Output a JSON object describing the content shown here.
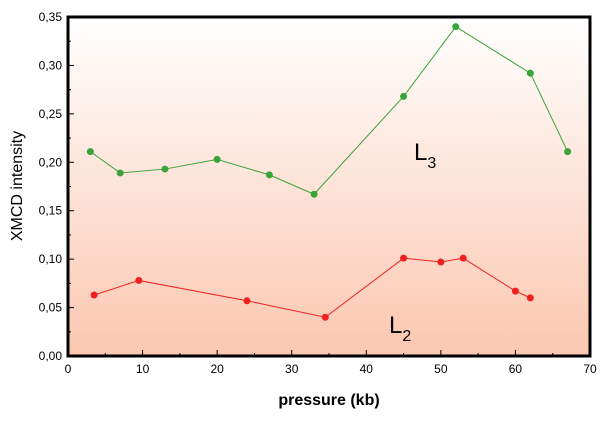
{
  "chart_data": {
    "type": "line",
    "title": "",
    "xlabel": "pressure (kb)",
    "ylabel": "XMCD intensity",
    "xlim": [
      0,
      70
    ],
    "ylim": [
      0,
      0.35
    ],
    "xticks": [
      "0",
      "10",
      "20",
      "30",
      "40",
      "50",
      "60",
      "70"
    ],
    "yticks": [
      "0,00",
      "0,05",
      "0,10",
      "0,15",
      "0,20",
      "0,25",
      "0,30",
      "0,35"
    ],
    "grid": false,
    "series": [
      {
        "name": "L3",
        "label_main": "L",
        "label_sub": "3",
        "color": "#3aa33a",
        "x": [
          3,
          7,
          13,
          20,
          27,
          33,
          45,
          52,
          62,
          67
        ],
        "y": [
          0.211,
          0.189,
          0.193,
          0.203,
          0.187,
          0.167,
          0.268,
          0.34,
          0.292,
          0.211
        ]
      },
      {
        "name": "L2",
        "label_main": "L",
        "label_sub": "2",
        "color": "#f02020",
        "x": [
          3.5,
          9.5,
          24,
          34.5,
          45,
          50,
          53,
          60,
          62
        ],
        "y": [
          0.063,
          0.078,
          0.057,
          0.04,
          0.101,
          0.097,
          0.101,
          0.067,
          0.06
        ]
      }
    ]
  }
}
